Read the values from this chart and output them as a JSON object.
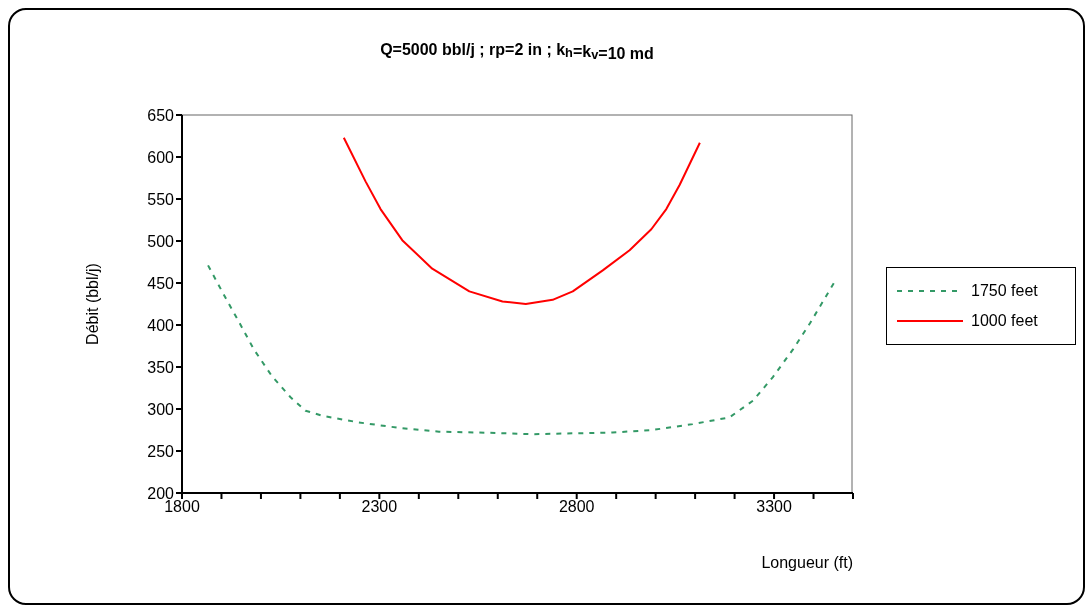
{
  "chart_data": {
    "type": "line",
    "title": "Q=5000 bbl/j ; rp=2 in ; k$_{h}$=k$_{v}$=10 md",
    "xlabel": "Longueur (ft)",
    "ylabel": "Débit (bbl/j)",
    "xlim": [
      1800,
      3500
    ],
    "xticks": [
      1800,
      {
        "value": 1900,
        "label": null
      },
      {
        "value": 2000,
        "label": null
      },
      {
        "value": 2100,
        "label": null
      },
      {
        "value": 2200,
        "label": null
      },
      2300,
      {
        "value": 2400,
        "label": null
      },
      {
        "value": 2500,
        "label": null
      },
      {
        "value": 2600,
        "label": null
      },
      {
        "value": 2700,
        "label": null
      },
      2800,
      {
        "value": 2900,
        "label": null
      },
      {
        "value": 3000,
        "label": null
      },
      {
        "value": 3100,
        "label": null
      },
      {
        "value": 3200,
        "label": null
      },
      3300,
      {
        "value": 3400,
        "label": null
      },
      {
        "value": 3500,
        "label": null
      }
    ],
    "ylim": [
      200,
      650
    ],
    "yticks": [
      200,
      250,
      300,
      350,
      400,
      450,
      500,
      550,
      600,
      650
    ],
    "grid": false,
    "legend": "right",
    "marker": "none",
    "series": [
      {
        "name": "1750 feet",
        "color": "#339966",
        "line_style": "dashed",
        "x": [
          1866,
          1906,
          1944,
          1982,
          2028,
          2075,
          2113,
          2155,
          2248,
          2358,
          2451,
          2553,
          2690,
          2790,
          2891,
          2992,
          3094,
          3187,
          3247,
          3297,
          3348,
          3391,
          3454
        ],
        "values": [
          471,
          436,
          404,
          371,
          339,
          314,
          298,
          292,
          284,
          277,
          273,
          272,
          270,
          271,
          272,
          275,
          282,
          290,
          310,
          338,
          371,
          402,
          452
        ]
      },
      {
        "name": "1000 feet",
        "color": "#ff0000",
        "line_style": "solid",
        "x": [
          2210,
          2265,
          2303,
          2358,
          2434,
          2528,
          2612,
          2671,
          2739,
          2790,
          2866,
          2934,
          2989,
          3027,
          3061,
          3112
        ],
        "values": [
          623,
          571,
          538,
          501,
          467,
          440,
          428,
          425,
          430,
          440,
          465,
          489,
          514,
          538,
          567,
          617
        ]
      }
    ]
  }
}
